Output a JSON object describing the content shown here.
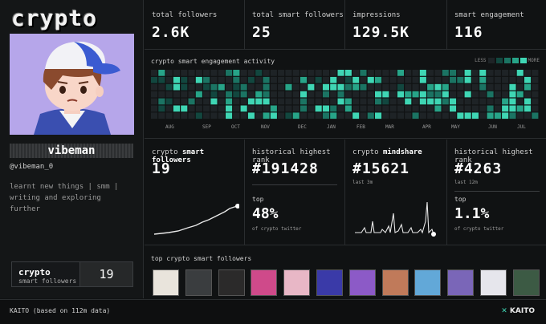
{
  "profile": {
    "brand_title": "crypto",
    "display_name": "vibeman",
    "username": "@vibeman_0",
    "bio": "learnt new things | smm | writing and exploring further",
    "smart_followers_label": "crypto",
    "smart_followers_sublabel": "smart followers",
    "smart_followers_value": "19"
  },
  "stats": [
    {
      "label": "total followers",
      "value": "2.6K"
    },
    {
      "label": "total smart followers",
      "value": "25"
    },
    {
      "label": "impressions",
      "value": "129.5K"
    },
    {
      "label": "smart engagement",
      "value": "116"
    }
  ],
  "heatmap": {
    "title": "crypto smart engagement activity",
    "legend_less": "LESS",
    "legend_more": "MORE",
    "months": [
      "AUG",
      "SEP",
      "OCT",
      "NOV",
      "DEC",
      "JAN",
      "FEB",
      "MAR",
      "APR",
      "MAY",
      "JUN",
      "JUL"
    ],
    "colors": [
      "#1e2326",
      "#12473f",
      "#1b7463",
      "#27a488",
      "#3fd6b4"
    ]
  },
  "metrics": {
    "smart_followers": {
      "label_prefix": "crypto",
      "label_bold": "smart followers",
      "value": "19"
    },
    "historical_rank": {
      "label": "historical highest rank",
      "value": "#191428",
      "top_label": "top",
      "top_value": "48%",
      "top_sub": "of crypto twitter"
    },
    "mindshare": {
      "label_prefix": "crypto",
      "label_bold": "mindshare",
      "value": "#15621",
      "sub": "last 3m"
    },
    "mindshare_rank": {
      "label": "historical highest rank",
      "value": "#4263",
      "sub": "last 12m",
      "top_label": "top",
      "top_value": "1.1%",
      "top_sub": "of crypto twitter"
    }
  },
  "top_followers": {
    "title": "top crypto smart followers"
  },
  "footer": {
    "note": "KAITO (based on 112m data)",
    "logo": "KAITO"
  }
}
